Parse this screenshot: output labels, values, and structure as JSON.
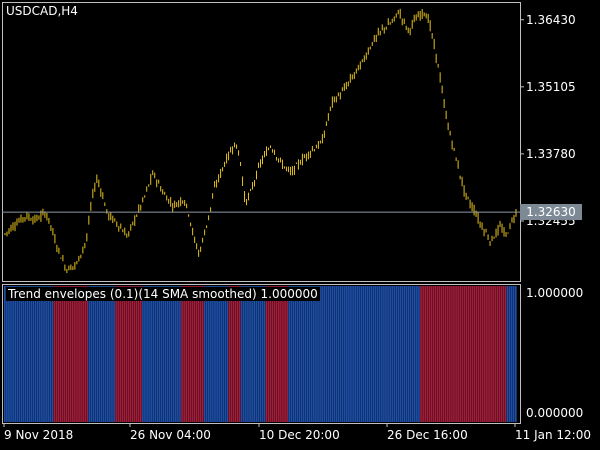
{
  "window": {
    "symbol_label": "USDCAD,H4"
  },
  "colors": {
    "background": "#000000",
    "frame": "#c0c0c0",
    "candle": "#e6c21d",
    "current_price_line": "#8e99a4",
    "current_price_box": "#7d8a96",
    "bull_envelope": "#1d4fa8",
    "bear_envelope": "#a11d3a"
  },
  "price_axis": {
    "ticks": [
      "1.36430",
      "1.35105",
      "1.33780",
      "1.32455"
    ],
    "current_price": "1.32630"
  },
  "indicator": {
    "label": "Trend envelopes (0.1)(14 SMA smoothed) 1.000000",
    "scale_max": "1.000000",
    "scale_min": "0.000000",
    "segments": [
      {
        "state": "bull",
        "bars": 24
      },
      {
        "state": "bear",
        "bars": 17
      },
      {
        "state": "bull",
        "bars": 13
      },
      {
        "state": "bear",
        "bars": 13
      },
      {
        "state": "bull",
        "bars": 19
      },
      {
        "state": "bear",
        "bars": 11
      },
      {
        "state": "bull",
        "bars": 12
      },
      {
        "state": "bear",
        "bars": 6
      },
      {
        "state": "bull",
        "bars": 12
      },
      {
        "state": "bear",
        "bars": 11
      },
      {
        "state": "bull",
        "bars": 64
      },
      {
        "state": "bear",
        "bars": 42
      },
      {
        "state": "bull",
        "bars": 5
      }
    ]
  },
  "time_axis": {
    "ticks": [
      "9 Nov 2018",
      "26 Nov 04:00",
      "10 Dec 20:00",
      "26 Dec 16:00",
      "11 Jan 12:00"
    ]
  },
  "chart_data": {
    "type": "candlestick",
    "symbol": "USDCAD",
    "timeframe": "H4",
    "ylim": [
      1.3127,
      1.3678
    ],
    "path": [
      {
        "x": 0.0,
        "y": 1.322
      },
      {
        "x": 0.02,
        "y": 1.324
      },
      {
        "x": 0.04,
        "y": 1.3255
      },
      {
        "x": 0.06,
        "y": 1.3248
      },
      {
        "x": 0.08,
        "y": 1.3262
      },
      {
        "x": 0.09,
        "y": 1.3235
      },
      {
        "x": 0.1,
        "y": 1.32
      },
      {
        "x": 0.11,
        "y": 1.3175
      },
      {
        "x": 0.12,
        "y": 1.315
      },
      {
        "x": 0.14,
        "y": 1.316
      },
      {
        "x": 0.16,
        "y": 1.321
      },
      {
        "x": 0.17,
        "y": 1.329
      },
      {
        "x": 0.18,
        "y": 1.333
      },
      {
        "x": 0.19,
        "y": 1.33
      },
      {
        "x": 0.2,
        "y": 1.326
      },
      {
        "x": 0.22,
        "y": 1.324
      },
      {
        "x": 0.24,
        "y": 1.3215
      },
      {
        "x": 0.25,
        "y": 1.324
      },
      {
        "x": 0.27,
        "y": 1.3285
      },
      {
        "x": 0.29,
        "y": 1.334
      },
      {
        "x": 0.31,
        "y": 1.33
      },
      {
        "x": 0.33,
        "y": 1.3275
      },
      {
        "x": 0.35,
        "y": 1.329
      },
      {
        "x": 0.36,
        "y": 1.326
      },
      {
        "x": 0.37,
        "y": 1.321
      },
      {
        "x": 0.38,
        "y": 1.318
      },
      {
        "x": 0.39,
        "y": 1.322
      },
      {
        "x": 0.4,
        "y": 1.326
      },
      {
        "x": 0.41,
        "y": 1.331
      },
      {
        "x": 0.43,
        "y": 1.336
      },
      {
        "x": 0.45,
        "y": 1.34
      },
      {
        "x": 0.46,
        "y": 1.337
      },
      {
        "x": 0.47,
        "y": 1.328
      },
      {
        "x": 0.48,
        "y": 1.33
      },
      {
        "x": 0.5,
        "y": 1.336
      },
      {
        "x": 0.52,
        "y": 1.3395
      },
      {
        "x": 0.54,
        "y": 1.336
      },
      {
        "x": 0.56,
        "y": 1.334
      },
      {
        "x": 0.58,
        "y": 1.3365
      },
      {
        "x": 0.6,
        "y": 1.3385
      },
      {
        "x": 0.62,
        "y": 1.34
      },
      {
        "x": 0.64,
        "y": 1.348
      },
      {
        "x": 0.66,
        "y": 1.35
      },
      {
        "x": 0.68,
        "y": 1.353
      },
      {
        "x": 0.7,
        "y": 1.356
      },
      {
        "x": 0.72,
        "y": 1.36
      },
      {
        "x": 0.74,
        "y": 1.3625
      },
      {
        "x": 0.76,
        "y": 1.364
      },
      {
        "x": 0.77,
        "y": 1.366
      },
      {
        "x": 0.79,
        "y": 1.362
      },
      {
        "x": 0.8,
        "y": 1.364
      },
      {
        "x": 0.82,
        "y": 1.366
      },
      {
        "x": 0.83,
        "y": 1.364
      },
      {
        "x": 0.84,
        "y": 1.359
      },
      {
        "x": 0.85,
        "y": 1.354
      },
      {
        "x": 0.86,
        "y": 1.347
      },
      {
        "x": 0.87,
        "y": 1.342
      },
      {
        "x": 0.88,
        "y": 1.338
      },
      {
        "x": 0.89,
        "y": 1.334
      },
      {
        "x": 0.9,
        "y": 1.33
      },
      {
        "x": 0.91,
        "y": 1.328
      },
      {
        "x": 0.92,
        "y": 1.3265
      },
      {
        "x": 0.93,
        "y": 1.324
      },
      {
        "x": 0.94,
        "y": 1.3225
      },
      {
        "x": 0.95,
        "y": 1.3205
      },
      {
        "x": 0.96,
        "y": 1.322
      },
      {
        "x": 0.97,
        "y": 1.3235
      },
      {
        "x": 0.98,
        "y": 1.3215
      },
      {
        "x": 0.99,
        "y": 1.324
      },
      {
        "x": 1.0,
        "y": 1.3263
      }
    ]
  }
}
